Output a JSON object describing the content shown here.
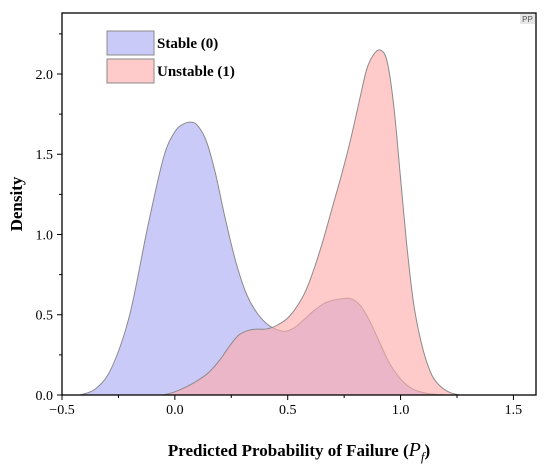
{
  "chart_data": {
    "type": "area",
    "xlabel": "Predicted Probability of Failure (",
    "xlabel_symbol": "P",
    "xlabel_subscript": "f",
    "xlabel_close": ")",
    "ylabel": "Density",
    "xlim": [
      -0.5,
      1.6
    ],
    "ylim": [
      0,
      2.38
    ],
    "xticks": [
      -0.5,
      0.0,
      0.5,
      1.0,
      1.5
    ],
    "xtick_labels": [
      "−0.5",
      "0.0",
      "0.5",
      "1.0",
      "1.5"
    ],
    "yticks": [
      0.0,
      0.5,
      1.0,
      1.5,
      2.0
    ],
    "ytick_labels": [
      "0.0",
      "0.5",
      "1.0",
      "1.5",
      "2.0"
    ],
    "grid": false,
    "legend_position": "top-left",
    "badge": "PP",
    "series": [
      {
        "name": "Stable (0)",
        "color": "#a9a9f5",
        "x": [
          -0.42,
          -0.35,
          -0.28,
          -0.2,
          -0.12,
          -0.05,
          0.0,
          0.04,
          0.07,
          0.1,
          0.14,
          0.18,
          0.22,
          0.27,
          0.32,
          0.37,
          0.42,
          0.47,
          0.5,
          0.54,
          0.58,
          0.62,
          0.66,
          0.7,
          0.74,
          0.78,
          0.82,
          0.86,
          0.9,
          0.95,
          1.0,
          1.05,
          1.1,
          1.15,
          1.2
        ],
        "y": [
          0.0,
          0.04,
          0.17,
          0.5,
          1.05,
          1.48,
          1.64,
          1.69,
          1.7,
          1.68,
          1.58,
          1.38,
          1.12,
          0.83,
          0.62,
          0.5,
          0.43,
          0.4,
          0.4,
          0.43,
          0.48,
          0.53,
          0.57,
          0.59,
          0.6,
          0.6,
          0.56,
          0.47,
          0.35,
          0.2,
          0.1,
          0.04,
          0.015,
          0.005,
          0.0
        ]
      },
      {
        "name": "Unstable (1)",
        "color": "#ffaaaa",
        "x": [
          -0.05,
          0.0,
          0.05,
          0.1,
          0.15,
          0.2,
          0.24,
          0.28,
          0.32,
          0.36,
          0.4,
          0.43,
          0.46,
          0.5,
          0.54,
          0.58,
          0.62,
          0.66,
          0.7,
          0.74,
          0.78,
          0.82,
          0.85,
          0.88,
          0.91,
          0.94,
          0.97,
          1.0,
          1.03,
          1.06,
          1.1,
          1.14,
          1.18,
          1.22,
          1.26
        ],
        "y": [
          0.0,
          0.02,
          0.05,
          0.09,
          0.14,
          0.22,
          0.3,
          0.37,
          0.4,
          0.41,
          0.41,
          0.42,
          0.44,
          0.48,
          0.55,
          0.65,
          0.8,
          0.98,
          1.18,
          1.38,
          1.6,
          1.85,
          2.03,
          2.12,
          2.15,
          2.08,
          1.8,
          1.35,
          0.9,
          0.55,
          0.28,
          0.12,
          0.05,
          0.015,
          0.0
        ]
      }
    ]
  }
}
